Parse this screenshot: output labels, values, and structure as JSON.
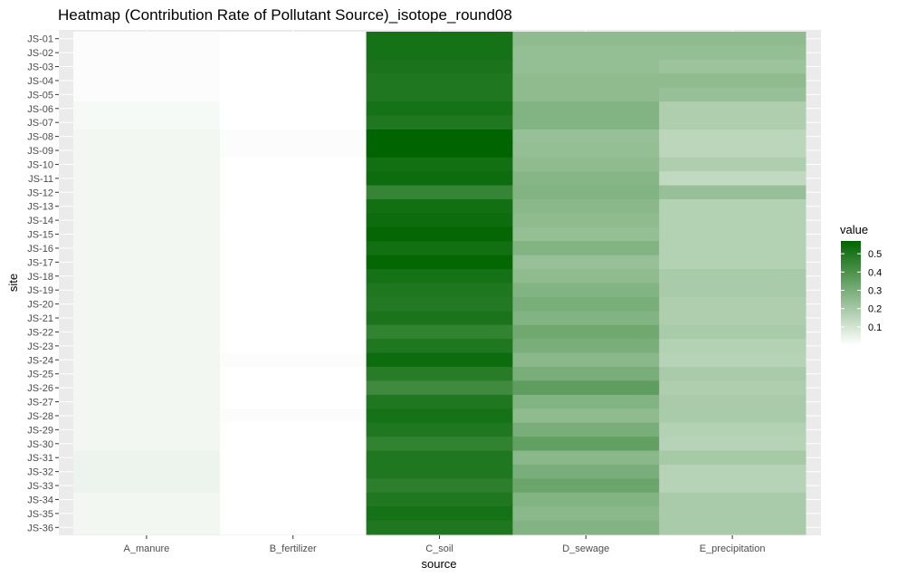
{
  "chart_data": {
    "type": "heatmap",
    "title": "Heatmap (Contribution Rate of Pollutant Source)_isotope_round08",
    "xlabel": "source",
    "ylabel": "site",
    "x_categories": [
      "A_manure",
      "B_fertilizer",
      "C_soil",
      "D_sewage",
      "E_precipitation"
    ],
    "y_categories": [
      "JS-01",
      "JS-02",
      "JS-03",
      "JS-04",
      "JS-05",
      "JS-06",
      "JS-07",
      "JS-08",
      "JS-09",
      "JS-10",
      "JS-11",
      "JS-12",
      "JS-13",
      "JS-14",
      "JS-15",
      "JS-16",
      "JS-17",
      "JS-18",
      "JS-19",
      "JS-20",
      "JS-21",
      "JS-22",
      "JS-23",
      "JS-24",
      "JS-25",
      "JS-26",
      "JS-27",
      "JS-28",
      "JS-29",
      "JS-30",
      "JS-31",
      "JS-32",
      "JS-33",
      "JS-34",
      "JS-35",
      "JS-36"
    ],
    "values": [
      [
        0.01,
        0.0,
        0.52,
        0.25,
        0.25
      ],
      [
        0.01,
        0.0,
        0.52,
        0.24,
        0.24
      ],
      [
        0.01,
        0.0,
        0.51,
        0.24,
        0.22
      ],
      [
        0.01,
        0.0,
        0.5,
        0.25,
        0.25
      ],
      [
        0.01,
        0.0,
        0.5,
        0.25,
        0.23
      ],
      [
        0.02,
        0.0,
        0.52,
        0.28,
        0.18
      ],
      [
        0.02,
        0.0,
        0.5,
        0.28,
        0.18
      ],
      [
        0.03,
        0.01,
        0.57,
        0.23,
        0.15
      ],
      [
        0.03,
        0.01,
        0.57,
        0.24,
        0.15
      ],
      [
        0.03,
        0.0,
        0.53,
        0.25,
        0.18
      ],
      [
        0.03,
        0.0,
        0.54,
        0.27,
        0.14
      ],
      [
        0.03,
        0.0,
        0.45,
        0.28,
        0.23
      ],
      [
        0.03,
        0.0,
        0.53,
        0.26,
        0.17
      ],
      [
        0.03,
        0.0,
        0.54,
        0.25,
        0.17
      ],
      [
        0.03,
        0.0,
        0.56,
        0.24,
        0.17
      ],
      [
        0.03,
        0.0,
        0.53,
        0.28,
        0.17
      ],
      [
        0.03,
        0.0,
        0.56,
        0.23,
        0.17
      ],
      [
        0.03,
        0.0,
        0.52,
        0.25,
        0.19
      ],
      [
        0.03,
        0.0,
        0.5,
        0.28,
        0.19
      ],
      [
        0.03,
        0.0,
        0.49,
        0.3,
        0.18
      ],
      [
        0.03,
        0.0,
        0.51,
        0.28,
        0.18
      ],
      [
        0.03,
        0.0,
        0.46,
        0.32,
        0.19
      ],
      [
        0.03,
        0.0,
        0.5,
        0.3,
        0.17
      ],
      [
        0.03,
        0.01,
        0.54,
        0.26,
        0.16
      ],
      [
        0.03,
        0.0,
        0.48,
        0.3,
        0.19
      ],
      [
        0.03,
        0.0,
        0.43,
        0.36,
        0.18
      ],
      [
        0.03,
        0.0,
        0.5,
        0.28,
        0.19
      ],
      [
        0.03,
        0.01,
        0.52,
        0.25,
        0.19
      ],
      [
        0.03,
        0.0,
        0.5,
        0.3,
        0.17
      ],
      [
        0.03,
        0.0,
        0.46,
        0.35,
        0.16
      ],
      [
        0.04,
        0.0,
        0.5,
        0.26,
        0.2
      ],
      [
        0.04,
        0.0,
        0.5,
        0.3,
        0.16
      ],
      [
        0.04,
        0.0,
        0.47,
        0.33,
        0.16
      ],
      [
        0.03,
        0.0,
        0.5,
        0.28,
        0.19
      ],
      [
        0.03,
        0.0,
        0.52,
        0.26,
        0.19
      ],
      [
        0.03,
        0.0,
        0.5,
        0.28,
        0.19
      ]
    ],
    "color_scale": {
      "low": "#ffffff",
      "high": "#006400",
      "domain": [
        0,
        0.57
      ]
    },
    "legend": {
      "title": "value",
      "ticks": [
        0.1,
        0.2,
        0.3,
        0.4,
        0.5
      ],
      "placement": "right"
    },
    "background": "#ebebeb",
    "grid": true
  }
}
